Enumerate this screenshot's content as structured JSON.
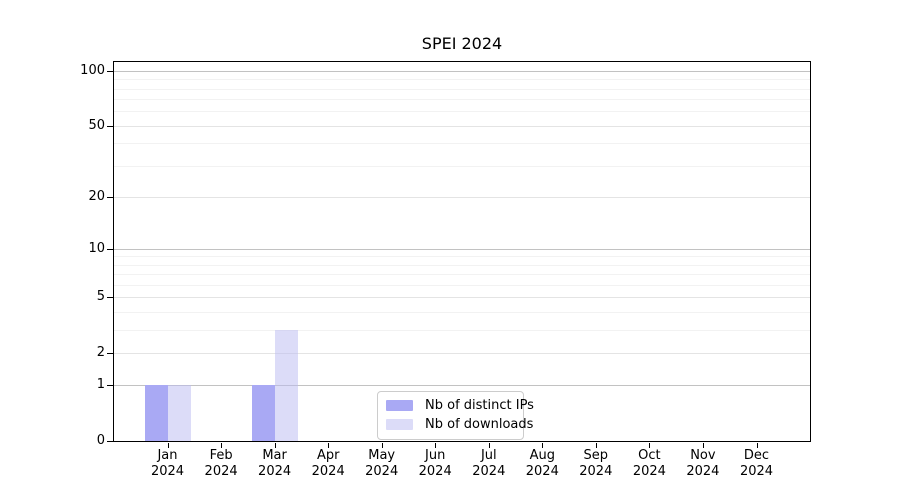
{
  "chart_data": {
    "type": "bar",
    "title": "SPEI 2024",
    "categories": [
      "Jan",
      "Feb",
      "Mar",
      "Apr",
      "May",
      "Jun",
      "Jul",
      "Aug",
      "Sep",
      "Oct",
      "Nov",
      "Dec"
    ],
    "category_year": "2024",
    "series": [
      {
        "name": "Nb of distinct IPs",
        "color": "#a9a9f4",
        "opacity": 1,
        "values": [
          1,
          0,
          1,
          0,
          0,
          0,
          0,
          0,
          0,
          0,
          0,
          0
        ]
      },
      {
        "name": "Nb of downloads",
        "color": "#b9b9f2",
        "opacity": 0.5,
        "values": [
          1,
          0,
          3,
          0,
          0,
          0,
          0,
          0,
          0,
          0,
          0,
          0
        ]
      }
    ],
    "y_axis": {
      "scale": "log1p",
      "ticks": [
        0,
        1,
        2,
        5,
        10,
        20,
        50,
        100
      ],
      "minor_ticks": [
        3,
        4,
        6,
        7,
        8,
        9,
        30,
        40,
        60,
        70,
        80,
        90
      ],
      "ylim": [
        0,
        112
      ]
    },
    "grid": {
      "orientation": "horizontal",
      "major_color": "#c2c2c2",
      "mid_color": "#e4e4e4",
      "minor_color": "#f2f2f2"
    },
    "legend_position": "bottom-center",
    "axis_color": "#000000",
    "text_color": "#000000",
    "background_color": "#ffffff"
  }
}
